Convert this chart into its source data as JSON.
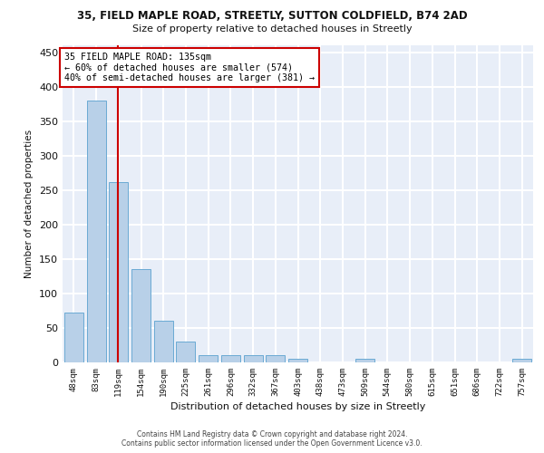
{
  "title_line1": "35, FIELD MAPLE ROAD, STREETLY, SUTTON COLDFIELD, B74 2AD",
  "title_line2": "Size of property relative to detached houses in Streetly",
  "xlabel": "Distribution of detached houses by size in Streetly",
  "ylabel": "Number of detached properties",
  "bar_labels": [
    "48sqm",
    "83sqm",
    "119sqm",
    "154sqm",
    "190sqm",
    "225sqm",
    "261sqm",
    "296sqm",
    "332sqm",
    "367sqm",
    "403sqm",
    "438sqm",
    "473sqm",
    "509sqm",
    "544sqm",
    "580sqm",
    "615sqm",
    "651sqm",
    "686sqm",
    "722sqm",
    "757sqm"
  ],
  "bar_values": [
    72,
    380,
    262,
    136,
    60,
    30,
    10,
    10,
    10,
    10,
    5,
    0,
    0,
    5,
    0,
    0,
    0,
    0,
    0,
    0,
    5
  ],
  "bar_color": "#b8d0e8",
  "bar_edge_color": "#6aaad4",
  "vline_color": "#cc0000",
  "annotation_line1": "35 FIELD MAPLE ROAD: 135sqm",
  "annotation_line2": "← 60% of detached houses are smaller (574)",
  "annotation_line3": "40% of semi-detached houses are larger (381) →",
  "ylim": [
    0,
    460
  ],
  "yticks": [
    0,
    50,
    100,
    150,
    200,
    250,
    300,
    350,
    400,
    450
  ],
  "bg_color": "#e8eef8",
  "grid_color": "#ffffff",
  "footer_line1": "Contains HM Land Registry data © Crown copyright and database right 2024.",
  "footer_line2": "Contains public sector information licensed under the Open Government Licence v3.0."
}
